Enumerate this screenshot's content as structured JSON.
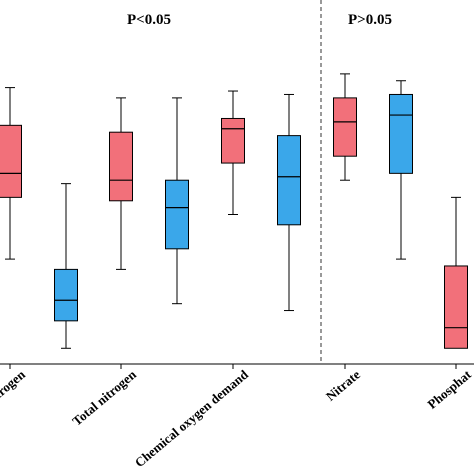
{
  "chart_data": {
    "type": "box",
    "annotations": [
      {
        "text": "P<0.05",
        "group": "left"
      },
      {
        "text": "P>0.05",
        "group": "right"
      }
    ],
    "categories": [
      "trogen",
      "Total nitrogen",
      "Chemical oxygen demand",
      "Nitrate",
      "Phosphat"
    ],
    "series": [
      {
        "color": "#f2707a",
        "boxes": [
          {
            "category": "trogen",
            "whisker_low": 30,
            "q1": 48,
            "median": 55,
            "q3": 69,
            "whisker_high": 80
          },
          {
            "category": "Total nitrogen",
            "whisker_low": 27,
            "q1": 47,
            "median": 53,
            "q3": 67,
            "whisker_high": 77
          },
          {
            "category": "Chemical oxygen demand",
            "whisker_low": 43,
            "q1": 58,
            "median": 68,
            "q3": 71,
            "whisker_high": 79
          },
          {
            "category": "Nitrate",
            "whisker_low": 53,
            "q1": 60,
            "median": 70,
            "q3": 77,
            "whisker_high": 84
          },
          {
            "category": "Phosphat",
            "whisker_low": null,
            "q1": 4,
            "median": 10,
            "q3": 28,
            "whisker_high": 48
          }
        ]
      },
      {
        "color": "#3aa7ea",
        "boxes": [
          {
            "category": "trogen",
            "whisker_low": 4,
            "q1": 12,
            "median": 18,
            "q3": 27,
            "whisker_high": 52
          },
          {
            "category": "Total nitrogen",
            "whisker_low": 17,
            "q1": 33,
            "median": 45,
            "q3": 53,
            "whisker_high": 77
          },
          {
            "category": "Chemical oxygen demand",
            "whisker_low": 15,
            "q1": 40,
            "median": 54,
            "q3": 66,
            "whisker_high": 78
          },
          {
            "category": "Nitrate",
            "whisker_low": 30,
            "q1": 55,
            "median": 72,
            "q3": 78,
            "whisker_high": 82
          },
          {
            "category": "Phosphat",
            "whisker_low": null,
            "q1": null,
            "median": null,
            "q3": null,
            "whisker_high": null
          }
        ]
      }
    ],
    "ylim": [
      0,
      100
    ],
    "separator_after_category": 2,
    "xlabel": "",
    "ylabel": "",
    "title": "",
    "grid": false
  }
}
